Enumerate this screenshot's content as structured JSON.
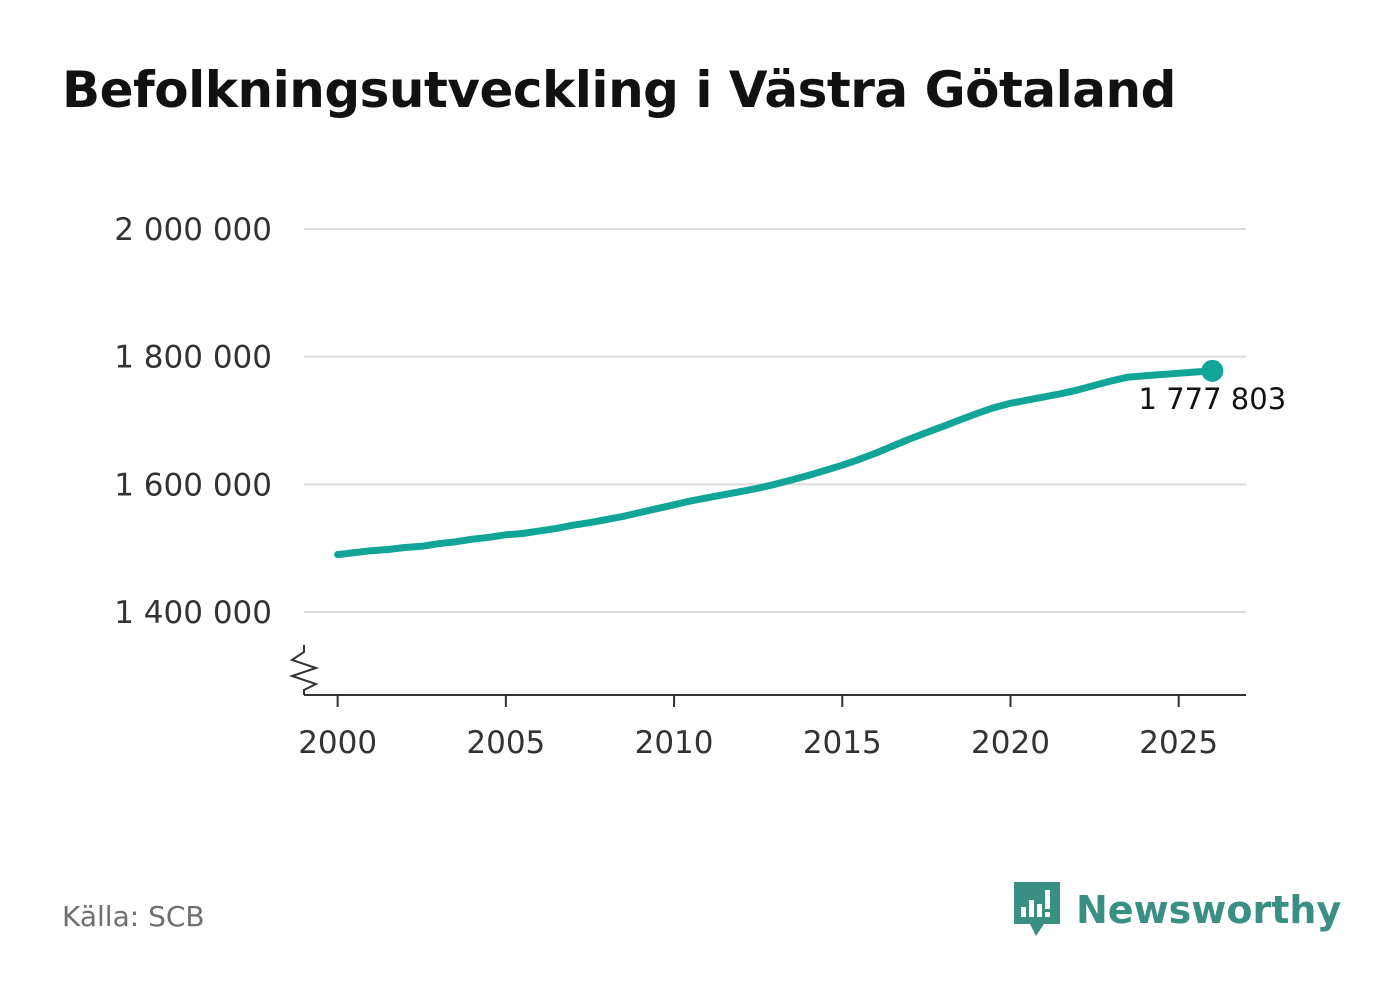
{
  "colors": {
    "series": "#11a597",
    "grid": "#dcdcdc",
    "axis": "#333333",
    "text": "#333333",
    "brand": "#3a8f83"
  },
  "source": "Källa: SCB",
  "brand": {
    "name": "Newsworthy",
    "icon": "newsworthy-logo-icon"
  },
  "chart_data": {
    "type": "line",
    "title": "Befolkningsutveckling i Västra Götaland",
    "xlabel": "",
    "ylabel": "",
    "xlim": [
      1999,
      2027
    ],
    "ylim": [
      1270000,
      2000000
    ],
    "axis_break": true,
    "grid": "horizontal",
    "y_ticks": [
      1400000,
      1600000,
      1800000,
      2000000
    ],
    "y_tick_labels": [
      "1 400 000",
      "1 600 000",
      "1 800 000",
      "2 000 000"
    ],
    "x_ticks": [
      2000,
      2005,
      2010,
      2015,
      2020,
      2025
    ],
    "x_tick_labels": [
      "2000",
      "2005",
      "2010",
      "2015",
      "2020",
      "2025"
    ],
    "end_label": "1 777 803",
    "series": [
      {
        "name": "",
        "points": [
          [
            2000.0,
            1490000
          ],
          [
            2000.5,
            1493000
          ],
          [
            2001.0,
            1496000
          ],
          [
            2001.5,
            1498000
          ],
          [
            2002.0,
            1501000
          ],
          [
            2002.5,
            1503000
          ],
          [
            2003.0,
            1507000
          ],
          [
            2003.5,
            1510000
          ],
          [
            2004.0,
            1514000
          ],
          [
            2004.5,
            1517000
          ],
          [
            2005.0,
            1521000
          ],
          [
            2005.5,
            1523000
          ],
          [
            2006.0,
            1527000
          ],
          [
            2006.5,
            1531000
          ],
          [
            2007.0,
            1536000
          ],
          [
            2007.5,
            1540000
          ],
          [
            2008.0,
            1545000
          ],
          [
            2008.5,
            1550000
          ],
          [
            2009.0,
            1556000
          ],
          [
            2009.5,
            1562000
          ],
          [
            2010.0,
            1568000
          ],
          [
            2010.5,
            1574000
          ],
          [
            2011.0,
            1579000
          ],
          [
            2011.5,
            1584000
          ],
          [
            2012.0,
            1589000
          ],
          [
            2012.5,
            1594000
          ],
          [
            2013.0,
            1600000
          ],
          [
            2013.5,
            1607000
          ],
          [
            2014.0,
            1614000
          ],
          [
            2014.5,
            1622000
          ],
          [
            2015.0,
            1630000
          ],
          [
            2015.5,
            1639000
          ],
          [
            2016.0,
            1649000
          ],
          [
            2016.5,
            1660000
          ],
          [
            2017.0,
            1671000
          ],
          [
            2017.5,
            1681000
          ],
          [
            2018.0,
            1691000
          ],
          [
            2018.5,
            1701000
          ],
          [
            2019.0,
            1711000
          ],
          [
            2019.5,
            1720000
          ],
          [
            2020.0,
            1727000
          ],
          [
            2020.5,
            1732000
          ],
          [
            2021.0,
            1737000
          ],
          [
            2021.5,
            1742000
          ],
          [
            2022.0,
            1748000
          ],
          [
            2022.5,
            1755000
          ],
          [
            2023.0,
            1762000
          ],
          [
            2023.5,
            1768000
          ],
          [
            2024.0,
            1770000
          ],
          [
            2024.5,
            1772000
          ],
          [
            2025.0,
            1774000
          ],
          [
            2025.5,
            1776000
          ],
          [
            2026.0,
            1777803
          ]
        ]
      }
    ]
  }
}
